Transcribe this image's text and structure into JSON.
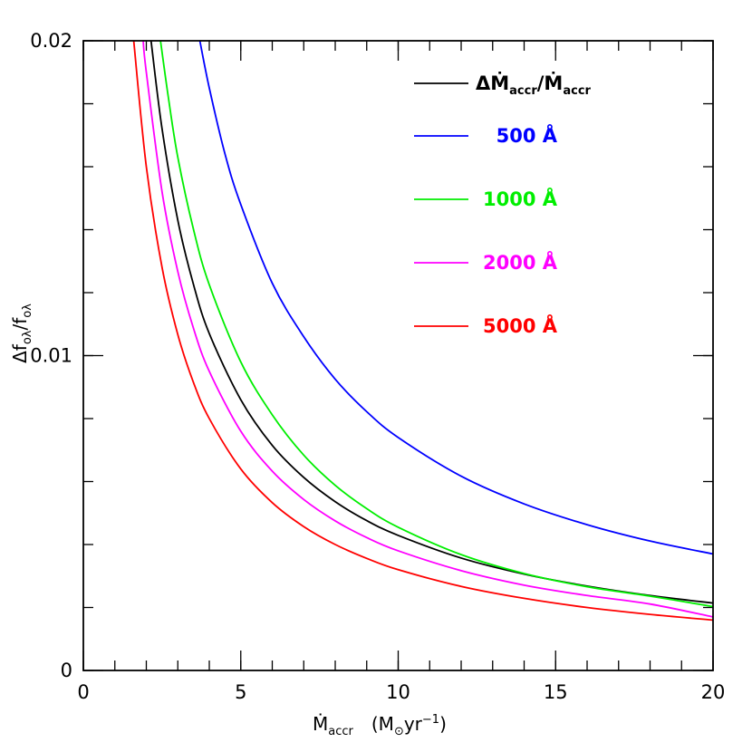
{
  "chart_data": {
    "type": "line",
    "xlim": [
      0,
      20
    ],
    "ylim": [
      0,
      0.02
    ],
    "x_major_ticks": [
      0,
      5,
      10,
      15,
      20
    ],
    "x_tick_labels": [
      "0",
      "5",
      "10",
      "15",
      "20"
    ],
    "y_major_ticks": [
      0,
      0.01,
      0.02
    ],
    "y_tick_labels": [
      "0",
      "0.01",
      "0.02"
    ],
    "x_minor_step": 1,
    "y_minor_step": 0.002,
    "xlabel": {
      "main": "Ṁ",
      "sub": "accr",
      "units_open": "(M",
      "units_sun": "⊙",
      "units_mid": "yr",
      "units_exp": "−1",
      "units_close": ")"
    },
    "ylabel": {
      "delta": "Δf",
      "sub1": "oλ",
      "slash": "/f",
      "sub2": "oλ"
    },
    "grid": false,
    "legend_position": "top-right",
    "series": [
      {
        "name": "ΔṀ_accr/Ṁ_accr",
        "color": "#000000",
        "label_parts": {
          "a": "ΔṀ",
          "a_sub": "accr",
          "b": "/Ṁ",
          "b_sub": "accr"
        },
        "x": [
          2.15,
          2.5,
          3,
          3.5,
          4,
          5,
          6,
          7,
          8,
          9,
          10,
          12,
          14,
          16,
          18,
          20
        ],
        "y": [
          0.02,
          0.0172,
          0.0143,
          0.01225,
          0.0107,
          0.0086,
          0.00715,
          0.00613,
          0.00536,
          0.00476,
          0.00429,
          0.00357,
          0.00306,
          0.00268,
          0.00238,
          0.00214
        ]
      },
      {
        "name": "500 Å",
        "color": "#0000ff",
        "x": [
          3.7,
          4,
          4.5,
          5,
          6,
          7,
          8,
          9,
          10,
          12,
          14,
          16,
          18,
          20
        ],
        "y": [
          0.02,
          0.0185,
          0.0164,
          0.0148,
          0.0123,
          0.0106,
          0.00925,
          0.00822,
          0.0074,
          0.00617,
          0.00529,
          0.00463,
          0.00411,
          0.0037
        ]
      },
      {
        "name": "1000 Å",
        "color": "#00ee00",
        "x": [
          2.45,
          2.7,
          3,
          3.5,
          4,
          5,
          6,
          7,
          8,
          9,
          10,
          12,
          14,
          16,
          18,
          20
        ],
        "y": [
          0.02,
          0.0182,
          0.0163,
          0.014,
          0.01225,
          0.0098,
          0.00812,
          0.00684,
          0.00588,
          0.00514,
          0.00455,
          0.00368,
          0.00308,
          0.00266,
          0.00236,
          0.00203
        ]
      },
      {
        "name": "2000 Å",
        "color": "#ff00ff",
        "x": [
          1.9,
          2,
          2.5,
          3,
          3.5,
          4,
          5,
          6,
          7,
          8,
          9,
          10,
          12,
          14,
          16,
          18,
          20
        ],
        "y": [
          0.02,
          0.019,
          0.0152,
          0.01267,
          0.01086,
          0.0095,
          0.0076,
          0.00633,
          0.00543,
          0.00475,
          0.00422,
          0.0038,
          0.00317,
          0.00271,
          0.00238,
          0.00211,
          0.0017
        ]
      },
      {
        "name": "5000 Å",
        "color": "#ff0000",
        "x": [
          1.6,
          2,
          2.5,
          3,
          3.5,
          4,
          5,
          6,
          7,
          8,
          9,
          10,
          12,
          14,
          16,
          18,
          20
        ],
        "y": [
          0.02,
          0.016,
          0.0128,
          0.01067,
          0.00914,
          0.008,
          0.0064,
          0.00533,
          0.00457,
          0.004,
          0.00356,
          0.0032,
          0.00267,
          0.00229,
          0.002,
          0.00178,
          0.0016
        ]
      }
    ]
  }
}
